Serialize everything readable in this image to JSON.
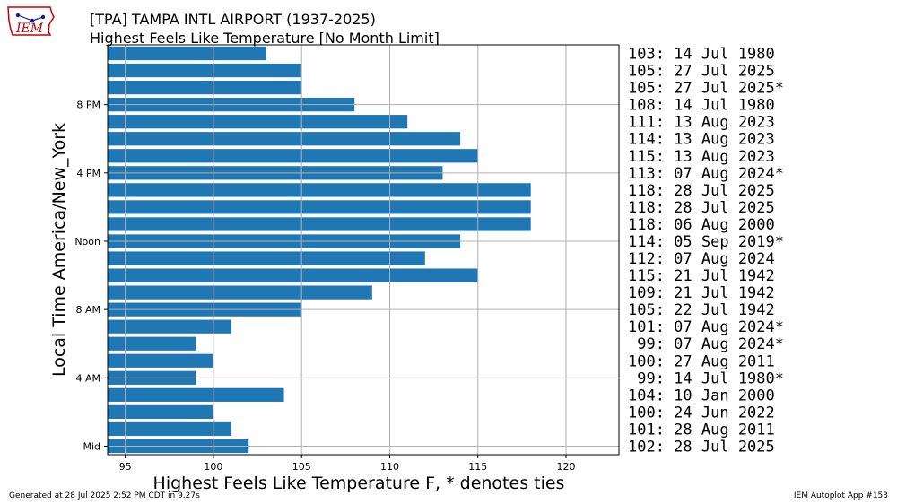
{
  "header": {
    "title": "[TPA] TAMPA INTL AIRPORT (1937-2025)",
    "subtitle": "Highest Feels Like Temperature [No Month Limit]",
    "logo_text": "IEM"
  },
  "footer": {
    "generated": "Generated at 28 Jul 2025 2:52 PM CDT in 9.27s",
    "app": "IEM Autoplot App #153"
  },
  "colors": {
    "bar": "#1f77b4",
    "grid": "#b0b0b0",
    "logo_red": "#cc0000",
    "logo_blue": "#1a1aa6"
  },
  "chart_data": {
    "type": "bar",
    "orientation": "horizontal",
    "xlabel": "Highest Feels Like Temperature F, * denotes ties",
    "ylabel": "Local Time America/New_York",
    "xlim": [
      94,
      123
    ],
    "xticks": [
      95,
      100,
      105,
      110,
      115,
      120
    ],
    "yticks": [
      {
        "hour": 0,
        "label": "Mid"
      },
      {
        "hour": 4,
        "label": "4 AM"
      },
      {
        "hour": 8,
        "label": "8 AM"
      },
      {
        "hour": 12,
        "label": "Noon"
      },
      {
        "hour": 16,
        "label": "4 PM"
      },
      {
        "hour": 20,
        "label": "8 PM"
      }
    ],
    "grid": true,
    "hours": [
      0,
      1,
      2,
      3,
      4,
      5,
      6,
      7,
      8,
      9,
      10,
      11,
      12,
      13,
      14,
      15,
      16,
      17,
      18,
      19,
      20,
      21,
      22,
      23
    ],
    "values": [
      102,
      101,
      100,
      104,
      99,
      100,
      99,
      101,
      105,
      109,
      115,
      112,
      114,
      118,
      118,
      118,
      113,
      115,
      114,
      111,
      108,
      105,
      105,
      103
    ],
    "labels": [
      "102: 28 Jul 2025",
      "101: 28 Aug 2011",
      "100: 24 Jun 2022",
      "104: 10 Jan 2000",
      " 99: 14 Jul 1980*",
      "100: 27 Aug 2011",
      " 99: 07 Aug 2024*",
      "101: 07 Aug 2024*",
      "105: 22 Jul 1942",
      "109: 21 Jul 1942",
      "115: 21 Jul 1942",
      "112: 07 Aug 2024",
      "114: 05 Sep 2019*",
      "118: 06 Aug 2000",
      "118: 28 Jul 2025",
      "118: 28 Jul 2025",
      "113: 07 Aug 2024*",
      "115: 13 Aug 2023",
      "114: 13 Aug 2023",
      "111: 13 Aug 2023",
      "108: 14 Jul 1980",
      "105: 27 Jul 2025*",
      "105: 27 Jul 2025",
      "103: 14 Jul 1980"
    ]
  }
}
